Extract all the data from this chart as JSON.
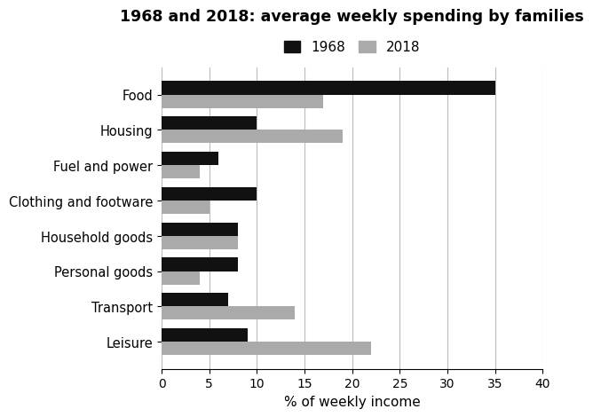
{
  "title": "1968 and 2018: average weekly spending by families",
  "categories": [
    "Food",
    "Housing",
    "Fuel and power",
    "Clothing and footware",
    "Household goods",
    "Personal goods",
    "Transport",
    "Leisure"
  ],
  "values_1968": [
    35,
    10,
    6,
    10,
    8,
    8,
    7,
    9
  ],
  "values_2018": [
    17,
    19,
    4,
    5,
    8,
    4,
    14,
    22
  ],
  "color_1968": "#111111",
  "color_2018": "#aaaaaa",
  "xlabel": "% of weekly income",
  "xlim": [
    0,
    40
  ],
  "xticks": [
    0,
    5,
    10,
    15,
    20,
    25,
    30,
    35,
    40
  ],
  "legend_labels": [
    "1968",
    "2018"
  ],
  "bar_height": 0.38,
  "background_color": "#ffffff",
  "grid_color": "#bbbbbb"
}
